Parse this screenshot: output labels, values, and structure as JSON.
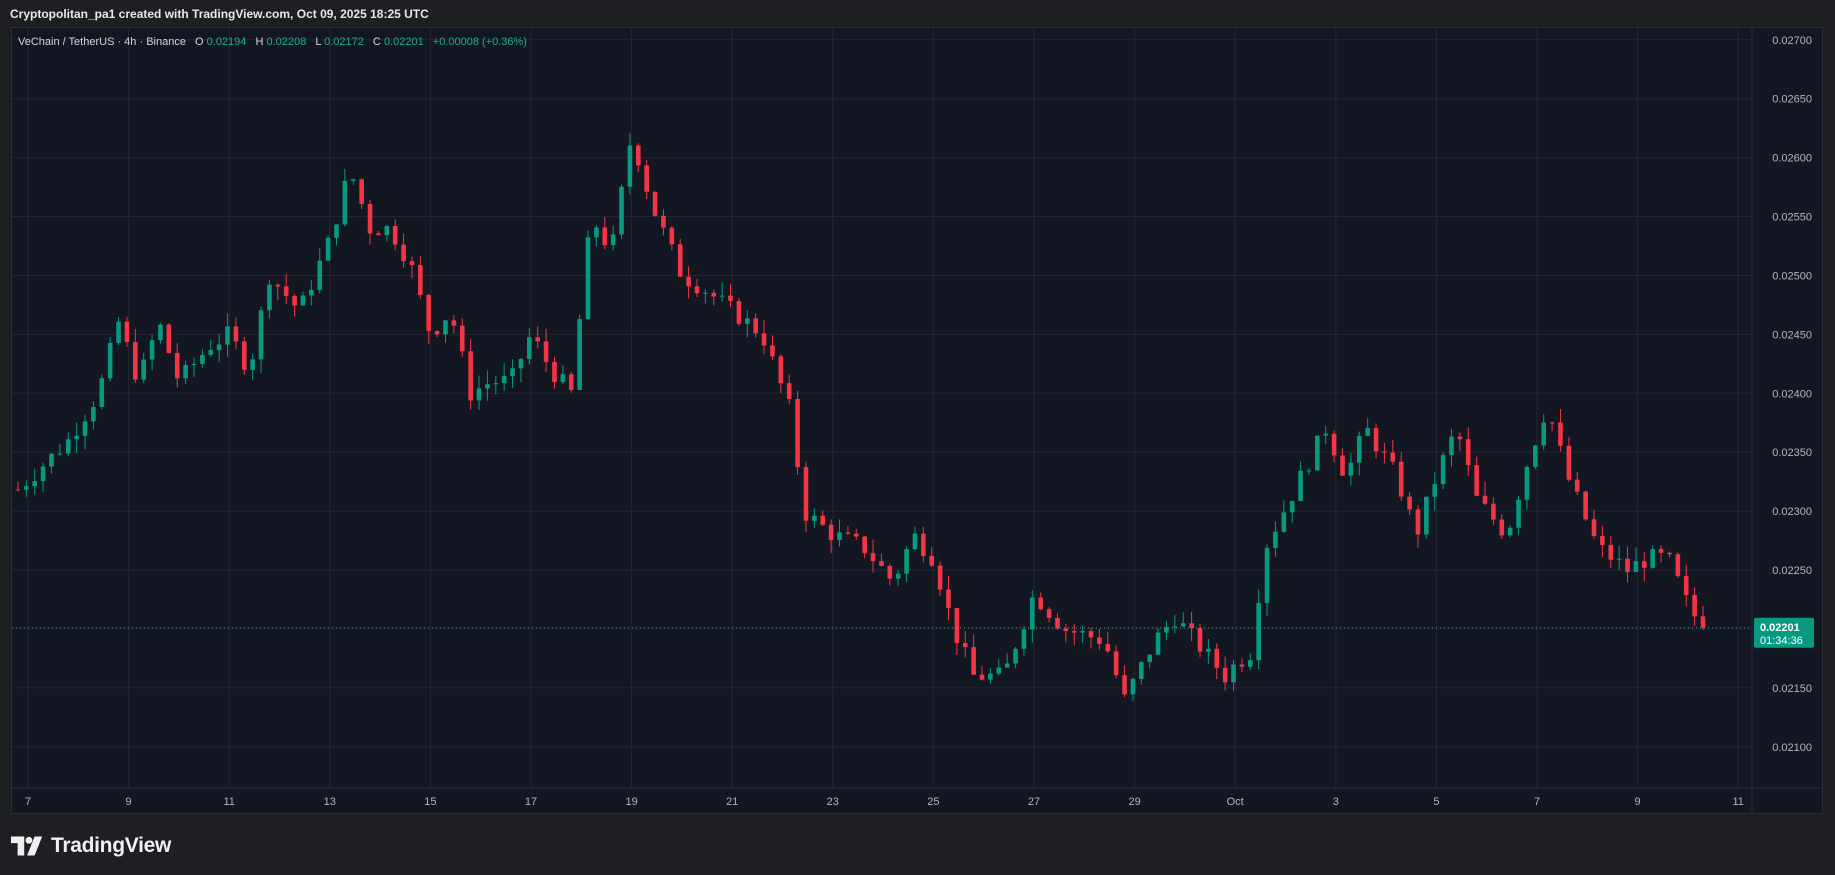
{
  "header": {
    "attribution": "Cryptopolitan_pa1 created with TradingView.com, Oct 09, 2025 18:25 UTC"
  },
  "legend": {
    "symbol": "VeChain / TetherUS · 4h · Binance",
    "o_label": "O",
    "o_value": "0.02194",
    "h_label": "H",
    "h_value": "0.02208",
    "l_label": "L",
    "l_value": "0.02172",
    "c_label": "C",
    "c_value": "0.02201",
    "change": "+0.00008 (+0.36%)"
  },
  "price_tag": {
    "price": "0.02201",
    "countdown": "01:34:36"
  },
  "footer": {
    "brand": "TradingView"
  },
  "colors": {
    "up": "#089981",
    "down": "#f23645",
    "background": "#131722",
    "grid": "#232733",
    "axis_text": "#b2b5be",
    "accent_text": "#22ab94"
  },
  "chart_data": {
    "type": "candlestick",
    "symbol": "VeChain / TetherUS",
    "interval": "4h",
    "exchange": "Binance",
    "ylim": [
      0.02065,
      0.0271
    ],
    "y_ticks": [
      "0.02100",
      "0.02150",
      "0.02200",
      "0.02250",
      "0.02300",
      "0.02350",
      "0.02400",
      "0.02450",
      "0.02500",
      "0.02550",
      "0.02600",
      "0.02650",
      "0.02700"
    ],
    "x_ticks": [
      "7",
      "9",
      "11",
      "13",
      "15",
      "17",
      "19",
      "21",
      "23",
      "25",
      "27",
      "29",
      "Oct",
      "3",
      "5",
      "7",
      "9",
      "11"
    ],
    "x_tick_units": [
      0,
      1,
      2,
      3,
      4,
      5,
      6,
      7,
      8,
      9,
      10,
      11,
      12,
      13,
      14,
      15,
      16,
      17
    ],
    "x_unit": "2 days",
    "last_price": 0.02201,
    "anchors": [
      [
        -0.2,
        0.0231
      ],
      [
        0.4,
        0.0236
      ],
      [
        0.7,
        0.024
      ],
      [
        0.9,
        0.0246
      ],
      [
        1.1,
        0.0241
      ],
      [
        1.3,
        0.0246
      ],
      [
        1.5,
        0.0241
      ],
      [
        1.8,
        0.0244
      ],
      [
        2.0,
        0.0245
      ],
      [
        2.2,
        0.0242
      ],
      [
        2.4,
        0.025
      ],
      [
        2.7,
        0.0247
      ],
      [
        3.0,
        0.0253
      ],
      [
        3.2,
        0.0259
      ],
      [
        3.4,
        0.0254
      ],
      [
        3.6,
        0.0254
      ],
      [
        3.8,
        0.0251
      ],
      [
        4.0,
        0.0245
      ],
      [
        4.2,
        0.0247
      ],
      [
        4.4,
        0.024
      ],
      [
        4.6,
        0.0241
      ],
      [
        4.8,
        0.0241
      ],
      [
        5.0,
        0.0245
      ],
      [
        5.2,
        0.0242
      ],
      [
        5.4,
        0.024
      ],
      [
        5.6,
        0.0255
      ],
      [
        5.8,
        0.0252
      ],
      [
        6.0,
        0.0262
      ],
      [
        6.2,
        0.0256
      ],
      [
        6.5,
        0.025
      ],
      [
        6.7,
        0.0249
      ],
      [
        7.0,
        0.0247
      ],
      [
        7.3,
        0.0245
      ],
      [
        7.6,
        0.0238
      ],
      [
        7.7,
        0.023
      ],
      [
        8.0,
        0.0228
      ],
      [
        8.3,
        0.0227
      ],
      [
        8.6,
        0.0224
      ],
      [
        8.8,
        0.0228
      ],
      [
        9.0,
        0.0226
      ],
      [
        9.2,
        0.022
      ],
      [
        9.4,
        0.0216
      ],
      [
        9.7,
        0.0216
      ],
      [
        10.0,
        0.0223
      ],
      [
        10.3,
        0.022
      ],
      [
        10.7,
        0.0219
      ],
      [
        10.9,
        0.0214
      ],
      [
        11.2,
        0.0219
      ],
      [
        11.4,
        0.0221
      ],
      [
        11.6,
        0.0219
      ],
      [
        11.9,
        0.0216
      ],
      [
        12.0,
        0.0217
      ],
      [
        12.15,
        0.0218
      ],
      [
        12.3,
        0.0227
      ],
      [
        12.6,
        0.0232
      ],
      [
        12.9,
        0.0237
      ],
      [
        13.1,
        0.0233
      ],
      [
        13.3,
        0.0237
      ],
      [
        13.6,
        0.0233
      ],
      [
        13.8,
        0.0228
      ],
      [
        14.0,
        0.0233
      ],
      [
        14.2,
        0.0237
      ],
      [
        14.4,
        0.0231
      ],
      [
        14.7,
        0.0228
      ],
      [
        14.9,
        0.0234
      ],
      [
        15.1,
        0.0239
      ],
      [
        15.3,
        0.0233
      ],
      [
        15.6,
        0.0227
      ],
      [
        15.9,
        0.0225
      ],
      [
        16.1,
        0.0226
      ],
      [
        16.3,
        0.0226
      ],
      [
        16.5,
        0.0222
      ],
      [
        16.65,
        0.022
      ]
    ],
    "notes": "Candles every 4h (12 candles per 2-day axis unit); OHLC sampled from visible price path."
  }
}
